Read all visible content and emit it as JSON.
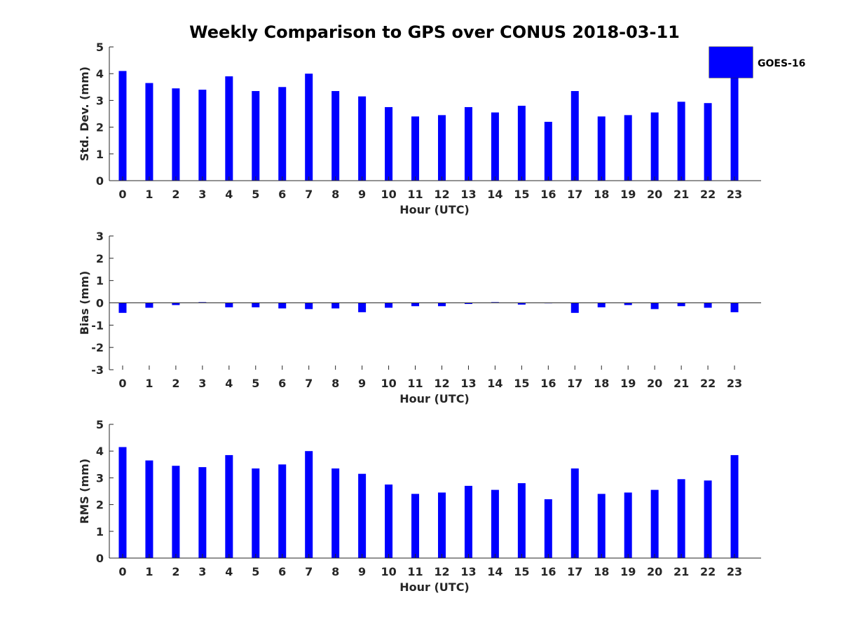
{
  "chart_data": {
    "title": "Weekly Comparison to GPS over CONUS 2018-03-11",
    "legend": {
      "label": "GOES-16",
      "placement": "top-right",
      "color": "#0000ff"
    },
    "bar_color": "#0000ff",
    "grid": false,
    "panels": [
      {
        "type": "bar",
        "xlabel": "Hour (UTC)",
        "ylabel": "Std. Dev. (mm)",
        "ylim": [
          0,
          5
        ],
        "yticks": [
          "0",
          "1",
          "2",
          "3",
          "4",
          "5"
        ],
        "categories": [
          "0",
          "1",
          "2",
          "3",
          "4",
          "5",
          "6",
          "7",
          "8",
          "9",
          "10",
          "11",
          "12",
          "13",
          "14",
          "15",
          "16",
          "17",
          "18",
          "19",
          "20",
          "21",
          "22",
          "23"
        ],
        "values": [
          4.1,
          3.65,
          3.45,
          3.4,
          3.9,
          3.35,
          3.5,
          4.0,
          3.35,
          3.15,
          2.75,
          2.4,
          2.45,
          2.75,
          2.55,
          2.8,
          2.2,
          3.35,
          2.4,
          2.45,
          2.55,
          2.95,
          2.9,
          3.85
        ]
      },
      {
        "type": "bar",
        "xlabel": "Hour (UTC)",
        "ylabel": "Bias (mm)",
        "ylim": [
          -3,
          3
        ],
        "yticks": [
          "-3",
          "-2",
          "-1",
          "0",
          "1",
          "2",
          "3"
        ],
        "categories": [
          "0",
          "1",
          "2",
          "3",
          "4",
          "5",
          "6",
          "7",
          "8",
          "9",
          "10",
          "11",
          "12",
          "13",
          "14",
          "15",
          "16",
          "17",
          "18",
          "19",
          "20",
          "21",
          "22",
          "23"
        ],
        "values": [
          -0.45,
          -0.22,
          -0.1,
          0.03,
          -0.2,
          -0.2,
          -0.25,
          -0.28,
          -0.25,
          -0.42,
          -0.22,
          -0.15,
          -0.15,
          -0.05,
          0.03,
          -0.08,
          -0.02,
          -0.45,
          -0.2,
          -0.1,
          -0.28,
          -0.15,
          -0.22,
          -0.42
        ]
      },
      {
        "type": "bar",
        "xlabel": "Hour (UTC)",
        "ylabel": "RMS (mm)",
        "ylim": [
          0,
          5
        ],
        "yticks": [
          "0",
          "1",
          "2",
          "3",
          "4",
          "5"
        ],
        "categories": [
          "0",
          "1",
          "2",
          "3",
          "4",
          "5",
          "6",
          "7",
          "8",
          "9",
          "10",
          "11",
          "12",
          "13",
          "14",
          "15",
          "16",
          "17",
          "18",
          "19",
          "20",
          "21",
          "22",
          "23"
        ],
        "values": [
          4.15,
          3.65,
          3.45,
          3.4,
          3.85,
          3.35,
          3.5,
          4.0,
          3.35,
          3.15,
          2.75,
          2.4,
          2.45,
          2.7,
          2.55,
          2.8,
          2.2,
          3.35,
          2.4,
          2.45,
          2.55,
          2.95,
          2.9,
          3.85
        ]
      }
    ]
  }
}
